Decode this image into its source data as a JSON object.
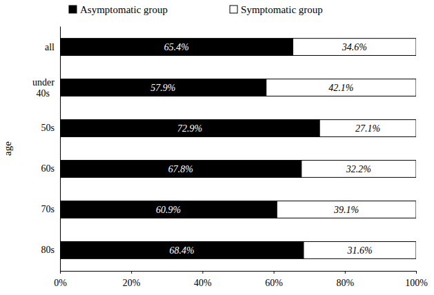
{
  "chart_data": {
    "type": "bar",
    "orientation": "horizontal",
    "stacked": true,
    "data_labels": true,
    "legend": "top",
    "grid": false,
    "y_label": "age",
    "categories": [
      "all",
      "under 40s",
      "50s",
      "60s",
      "70s",
      "80s"
    ],
    "series": [
      {
        "name": "Asymptomatic group",
        "color": "#000000",
        "values": [
          65.4,
          57.9,
          72.9,
          67.8,
          60.9,
          68.4
        ],
        "value_labels": [
          "65.4%",
          "57.9%",
          "72.9%",
          "67.8%",
          "60.9%",
          "68.4%"
        ]
      },
      {
        "name": "Symptomatic group",
        "color": "#ffffff",
        "values": [
          34.6,
          42.1,
          27.1,
          32.2,
          39.1,
          31.6
        ],
        "value_labels": [
          "34.6%",
          "42.1%",
          "27.1%",
          "32.2%",
          "39.1%",
          "31.6%"
        ]
      }
    ],
    "xlim": [
      0,
      100
    ],
    "xticks": [
      {
        "value": 0,
        "label": "0%"
      },
      {
        "value": 20,
        "label": "20%"
      },
      {
        "value": 40,
        "label": "40%"
      },
      {
        "value": 60,
        "label": "60%"
      },
      {
        "value": 80,
        "label": "80%"
      },
      {
        "value": 100,
        "label": "100%"
      }
    ]
  }
}
